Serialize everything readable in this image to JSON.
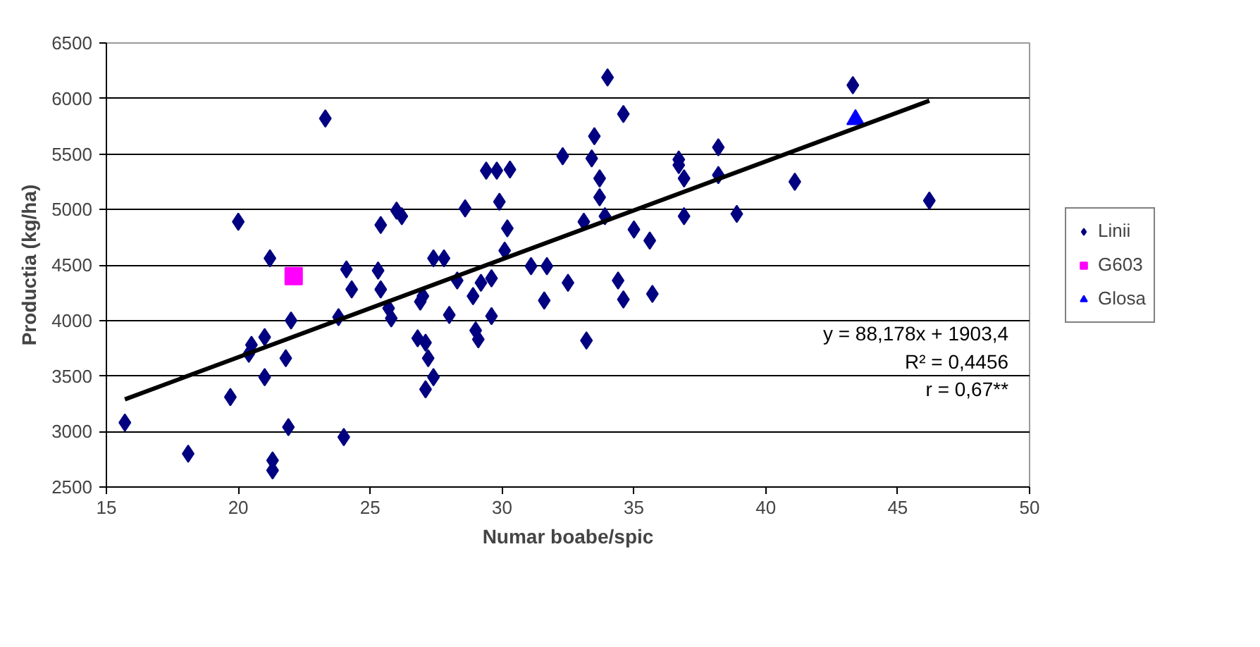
{
  "chart_data": {
    "type": "scatter",
    "xlabel": "Numar boabe/spic",
    "ylabel": "Productia (kg/ha)",
    "xlim": [
      15,
      50
    ],
    "xticks": [
      15,
      20,
      25,
      30,
      35,
      40,
      45,
      50
    ],
    "ylim": [
      2500,
      6500
    ],
    "yticks": [
      2500,
      3000,
      3500,
      4000,
      4500,
      5000,
      5500,
      6000,
      6500
    ],
    "grid": "y",
    "legend": "right",
    "annotations": [
      "y = 88,178x + 1903,4",
      "R² = 0,4456",
      "r = 0,67**"
    ],
    "series": [
      {
        "name": "Linii",
        "color": "#000080",
        "marker": "diamond",
        "x": [
          15.7,
          18.1,
          19.7,
          20,
          20.4,
          20.5,
          21,
          21,
          21.2,
          21.3,
          21.3,
          21.8,
          21.9,
          22,
          23.3,
          23.8,
          24,
          24.1,
          24.3,
          25.3,
          25.4,
          25.4,
          25.7,
          25.8,
          26,
          26.2,
          26.8,
          26.9,
          27,
          27.1,
          27.1,
          27.2,
          27.4,
          27.4,
          27.8,
          28,
          28.3,
          28.6,
          28.9,
          29,
          29.1,
          29.2,
          29.4,
          29.6,
          29.6,
          29.8,
          29.9,
          30.1,
          30.2,
          30.3,
          31.1,
          31.6,
          31.7,
          32.3,
          32.5,
          33.1,
          33.2,
          33.4,
          33.5,
          33.7,
          33.7,
          33.9,
          34,
          34.4,
          34.6,
          34.6,
          35,
          35.6,
          35.7,
          36.7,
          36.7,
          36.9,
          36.9,
          38.2,
          38.2,
          38.9,
          41.1,
          43.3,
          46.2
        ],
        "values": [
          3080,
          2800,
          3310,
          4890,
          3700,
          3780,
          3850,
          3490,
          4560,
          2740,
          2650,
          3660,
          3040,
          4000,
          5820,
          4030,
          2950,
          4460,
          4280,
          4450,
          4860,
          4280,
          4110,
          4020,
          4990,
          4940,
          3840,
          4170,
          4220,
          3800,
          3380,
          3660,
          3490,
          4560,
          4560,
          4050,
          4360,
          5010,
          4220,
          3910,
          3830,
          4340,
          5350,
          4040,
          4380,
          5350,
          5070,
          4630,
          4830,
          5360,
          4490,
          4180,
          4490,
          5480,
          4340,
          4890,
          3820,
          5460,
          5660,
          5280,
          5110,
          4940,
          6190,
          4360,
          5860,
          4190,
          4820,
          4720,
          4240,
          5400,
          5450,
          5280,
          4940,
          5310,
          5560,
          4960,
          5250,
          6120,
          5080
        ]
      },
      {
        "name": "G603",
        "color": "#ff00ff",
        "marker": "square",
        "x": [
          22.1
        ],
        "values": [
          4400
        ]
      },
      {
        "name": "Glosa",
        "color": "#0000ff",
        "marker": "triangle",
        "x": [
          43.4
        ],
        "values": [
          5810
        ]
      },
      {
        "type": "line",
        "color": "#000000",
        "line_style": "solid",
        "x": [
          15.7,
          46.2
        ],
        "values": [
          3290,
          5980
        ]
      }
    ]
  }
}
